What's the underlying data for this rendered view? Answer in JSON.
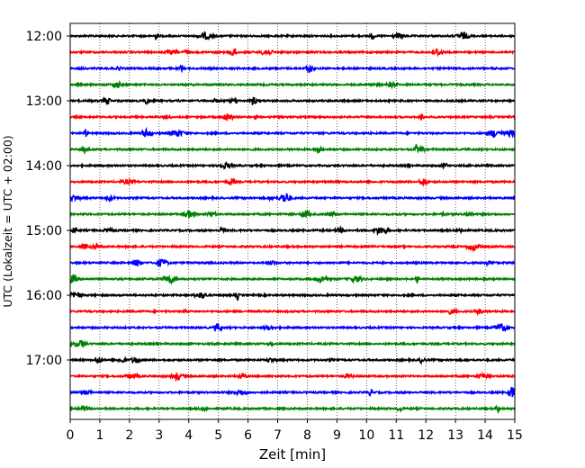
{
  "chart_data": {
    "type": "line",
    "title": "",
    "xlabel": "Zeit  [min]",
    "ylabel": "UTC (Lokalzeit = UTC + 02:00)",
    "xlim": [
      0,
      15
    ],
    "xticks": [
      0,
      1,
      2,
      3,
      4,
      5,
      6,
      7,
      8,
      9,
      10,
      11,
      12,
      13,
      14,
      15
    ],
    "ytick_labels": [
      "12:00",
      "13:00",
      "14:00",
      "15:00",
      "16:00",
      "17:00"
    ],
    "grid": "vertical dotted",
    "trace_colors": [
      "#000000",
      "#ff0000",
      "#0000ff",
      "#008000"
    ],
    "traces": [
      {
        "start": "12:00",
        "color": "#000000"
      },
      {
        "start": "12:15",
        "color": "#ff0000"
      },
      {
        "start": "12:30",
        "color": "#0000ff"
      },
      {
        "start": "12:45",
        "color": "#008000"
      },
      {
        "start": "13:00",
        "color": "#000000"
      },
      {
        "start": "13:15",
        "color": "#ff0000"
      },
      {
        "start": "13:30",
        "color": "#0000ff"
      },
      {
        "start": "13:45",
        "color": "#008000"
      },
      {
        "start": "14:00",
        "color": "#000000"
      },
      {
        "start": "14:15",
        "color": "#ff0000"
      },
      {
        "start": "14:30",
        "color": "#0000ff"
      },
      {
        "start": "14:45",
        "color": "#008000"
      },
      {
        "start": "15:00",
        "color": "#000000"
      },
      {
        "start": "15:15",
        "color": "#ff0000"
      },
      {
        "start": "15:30",
        "color": "#0000ff"
      },
      {
        "start": "15:45",
        "color": "#008000"
      },
      {
        "start": "16:00",
        "color": "#000000"
      },
      {
        "start": "16:15",
        "color": "#ff0000"
      },
      {
        "start": "16:30",
        "color": "#0000ff"
      },
      {
        "start": "16:45",
        "color": "#008000"
      },
      {
        "start": "17:00",
        "color": "#000000"
      },
      {
        "start": "17:15",
        "color": "#ff0000"
      },
      {
        "start": "17:30",
        "color": "#0000ff"
      },
      {
        "start": "17:45",
        "color": "#008000"
      }
    ]
  }
}
